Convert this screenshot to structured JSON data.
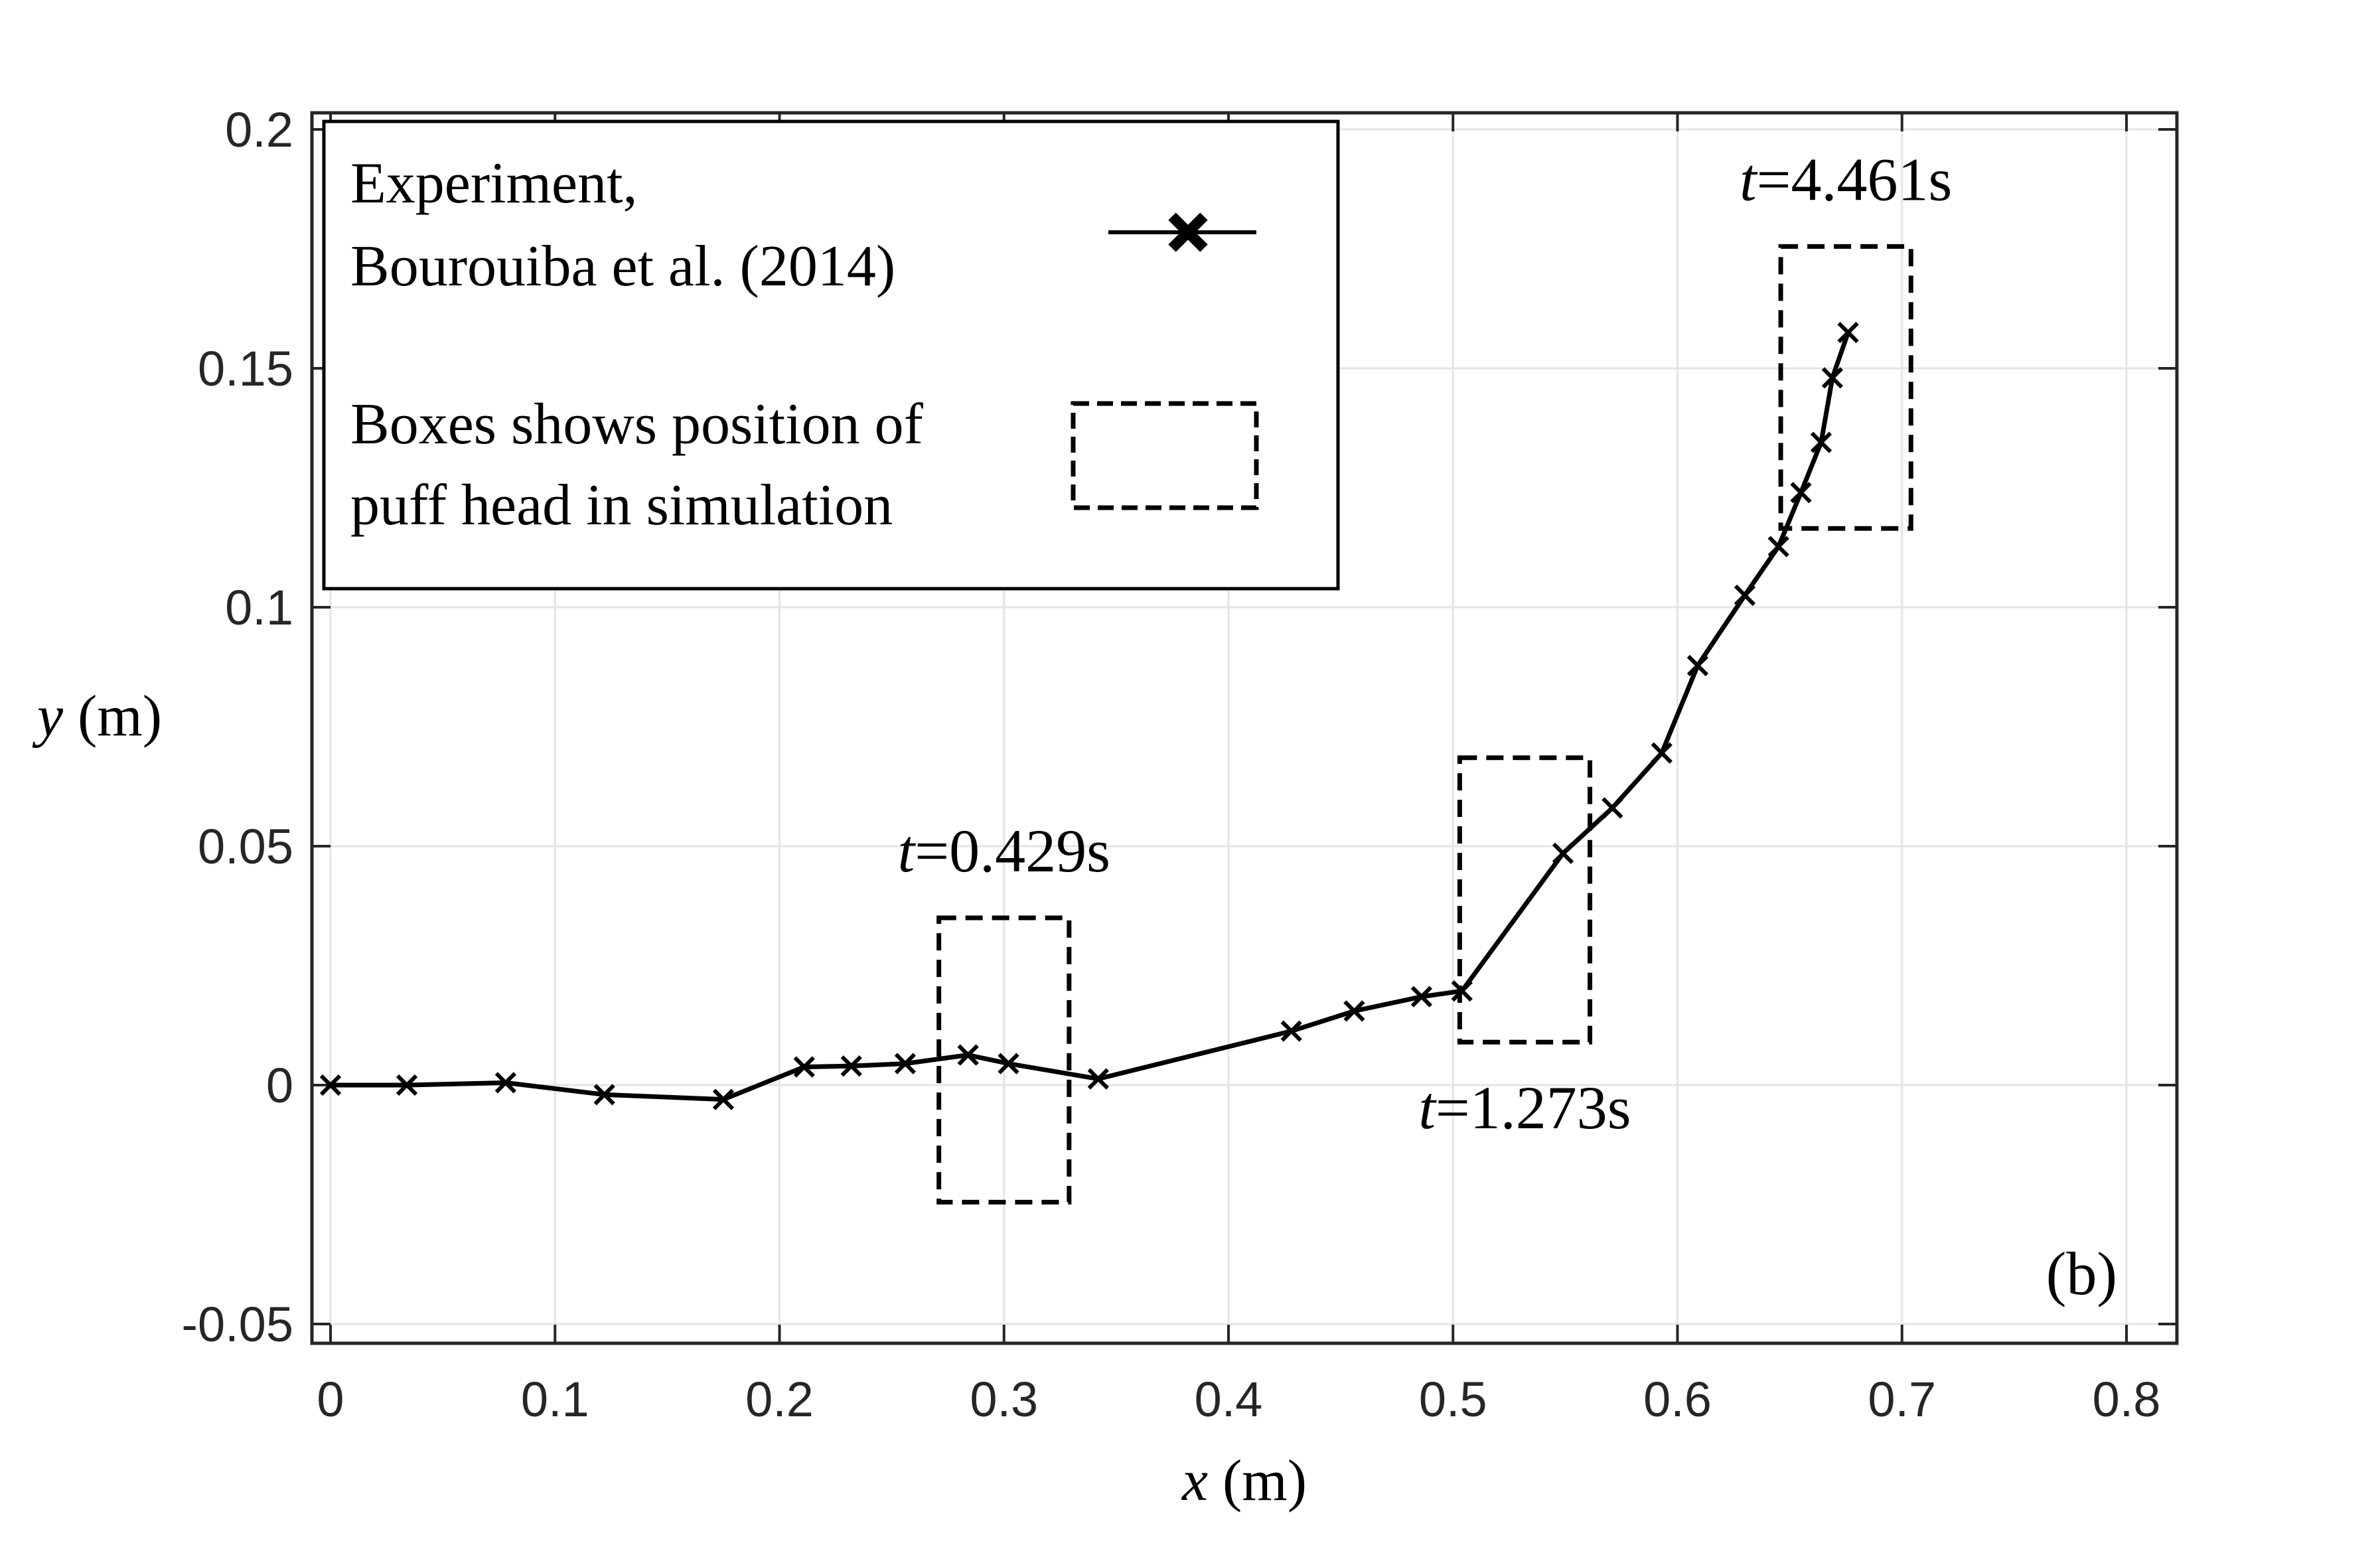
{
  "chart_data": {
    "type": "line",
    "xlabel": {
      "var": "x",
      "unit": " (m)"
    },
    "ylabel": {
      "var": "y",
      "unit": " (m)"
    },
    "xlim": [
      0,
      0.8
    ],
    "ylim": [
      -0.05,
      0.2
    ],
    "xticks": [
      "0",
      "0.1",
      "0.2",
      "0.3",
      "0.4",
      "0.5",
      "0.6",
      "0.7",
      "0.8"
    ],
    "yticks": [
      "-0.05",
      "0",
      "0.05",
      "0.1",
      "0.15",
      "0.2"
    ],
    "grid": true,
    "panel_label": "(b)",
    "legend": {
      "placement": "top-left",
      "entries": [
        {
          "lines": [
            "Experiment,",
            "Bourouiba et al. (2014)"
          ],
          "marker": "x-line"
        },
        {
          "lines": [
            "Boxes shows position of",
            "puff head in simulation"
          ],
          "marker": "dashed-box"
        }
      ]
    },
    "series": [
      {
        "name": "Experiment, Bourouiba et al. (2014)",
        "color": "#000000",
        "marker": "x",
        "points": [
          [
            0.0,
            0.0
          ],
          [
            0.034,
            0.0
          ],
          [
            0.078,
            0.0005
          ],
          [
            0.122,
            -0.002
          ],
          [
            0.175,
            -0.003
          ],
          [
            0.211,
            0.0038
          ],
          [
            0.232,
            0.004
          ],
          [
            0.256,
            0.0045
          ],
          [
            0.284,
            0.0063
          ],
          [
            0.302,
            0.0045
          ],
          [
            0.342,
            0.0013
          ],
          [
            0.428,
            0.0113
          ],
          [
            0.456,
            0.0155
          ],
          [
            0.486,
            0.0185
          ],
          [
            0.504,
            0.0197
          ],
          [
            0.549,
            0.0485
          ],
          [
            0.571,
            0.058
          ],
          [
            0.593,
            0.0695
          ],
          [
            0.609,
            0.0878
          ],
          [
            0.63,
            0.1025
          ],
          [
            0.645,
            0.1127
          ],
          [
            0.655,
            0.124
          ],
          [
            0.664,
            0.1345
          ],
          [
            0.669,
            0.148
          ],
          [
            0.676,
            0.1575
          ]
        ]
      }
    ],
    "boxes": [
      {
        "t_var": "t",
        "t_value": "=0.429s",
        "x0": 0.271,
        "x1": 0.329,
        "y0": -0.0245,
        "y1": 0.035,
        "label_pos": "above"
      },
      {
        "t_var": "t",
        "t_value": "=1.273s",
        "x0": 0.503,
        "x1": 0.561,
        "y0": 0.009,
        "y1": 0.0685,
        "label_pos": "below"
      },
      {
        "t_var": "t",
        "t_value": "=4.461s",
        "x0": 0.646,
        "x1": 0.704,
        "y0": 0.1165,
        "y1": 0.1755,
        "label_pos": "above"
      }
    ]
  }
}
